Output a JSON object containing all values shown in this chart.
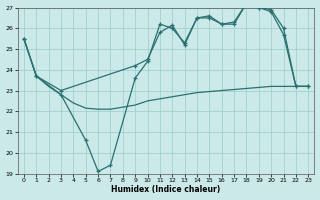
{
  "xlabel": "Humidex (Indice chaleur)",
  "xlim": [
    -0.5,
    23.5
  ],
  "ylim": [
    19,
    27
  ],
  "yticks": [
    19,
    20,
    21,
    22,
    23,
    24,
    25,
    26,
    27
  ],
  "xticks": [
    0,
    1,
    2,
    3,
    4,
    5,
    6,
    7,
    8,
    9,
    10,
    11,
    12,
    13,
    14,
    15,
    16,
    17,
    18,
    19,
    20,
    21,
    22,
    23
  ],
  "background_color": "#cce9e9",
  "grid_color": "#99cccc",
  "line_color": "#2a7070",
  "line1_x": [
    0,
    1,
    2,
    3,
    4,
    5,
    6,
    7,
    8,
    9,
    10,
    11,
    12,
    13,
    14,
    15,
    16,
    17,
    18,
    19,
    20,
    21,
    22,
    23
  ],
  "line1_y": [
    25.5,
    23.7,
    23.2,
    22.8,
    22.4,
    22.15,
    22.1,
    22.1,
    22.2,
    22.3,
    22.5,
    22.6,
    22.7,
    22.8,
    22.9,
    22.95,
    23.0,
    23.05,
    23.1,
    23.15,
    23.2,
    23.2,
    23.2,
    23.2
  ],
  "line2_x": [
    0,
    1,
    3,
    9,
    10,
    11,
    12,
    13,
    14,
    15,
    16,
    17,
    18,
    19,
    20,
    21,
    22,
    23
  ],
  "line2_y": [
    25.5,
    23.7,
    23.0,
    24.2,
    24.5,
    25.8,
    26.15,
    25.2,
    26.5,
    26.5,
    26.2,
    26.3,
    27.2,
    27.0,
    26.8,
    25.7,
    23.2,
    23.2
  ],
  "line3_x": [
    0,
    1,
    3,
    5,
    6,
    7,
    9,
    10,
    11,
    12,
    13,
    14,
    15,
    16,
    17,
    18,
    19,
    20,
    21,
    22,
    23
  ],
  "line3_y": [
    25.5,
    23.7,
    22.8,
    20.6,
    19.1,
    19.4,
    23.6,
    24.4,
    26.2,
    26.0,
    25.3,
    26.5,
    26.6,
    26.2,
    26.2,
    27.2,
    27.0,
    26.9,
    26.0,
    23.2,
    23.2
  ]
}
